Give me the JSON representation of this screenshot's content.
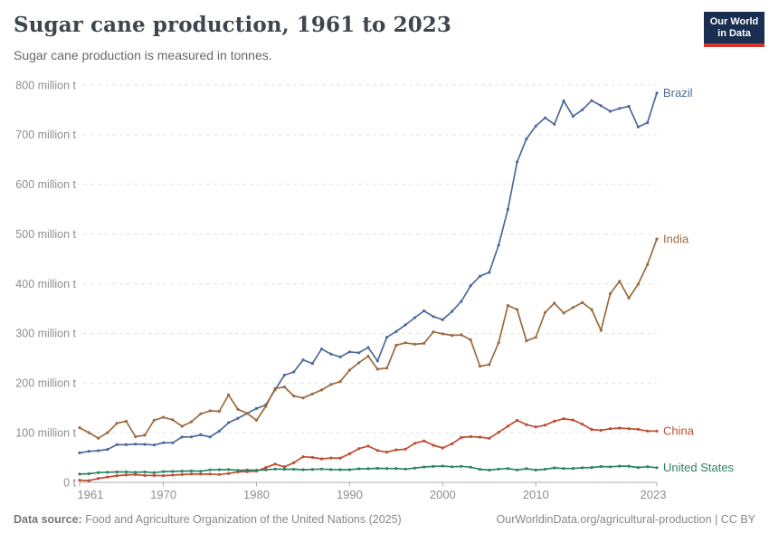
{
  "header": {
    "title": "Sugar cane production, 1961 to 2023",
    "subtitle": "Sugar cane production is measured in tonnes.",
    "logo": {
      "line1": "Our World",
      "line2": "in Data"
    }
  },
  "footer": {
    "source_label": "Data source:",
    "source_text": " Food and Agriculture Organization of the United Nations (2025)",
    "link_text": "OurWorldinData.org/agricultural-production",
    "license_suffix": " | CC BY"
  },
  "chart_data": {
    "type": "line",
    "title": "Sugar cane production, 1961 to 2023",
    "subtitle": "Sugar cane production is measured in tonnes.",
    "values_unit": "million tonnes",
    "x_label": "",
    "y_label": "",
    "x_start_year": 1961,
    "x_end_year": 2023,
    "x_ticks": [
      1961,
      1970,
      1980,
      1990,
      2000,
      2010,
      2023
    ],
    "y_axis": {
      "min": 0,
      "max": 800,
      "step": 100,
      "zero_label": "0 t",
      "unit_label": " million t"
    },
    "grid": "dashed-horizontal",
    "legend_position": "end-of-line-labels",
    "colors": {
      "grid": "#e3e3e3",
      "axis": "#adadad",
      "tick_text": "#8e8e8e"
    },
    "series": [
      {
        "name": "Brazil",
        "color": "#4C6A9C",
        "values": [
          59.4,
          62.5,
          63.7,
          66.4,
          75.9,
          75.8,
          77.1,
          76.6,
          75.2,
          79.8,
          79.6,
          91.3,
          91.5,
          95.6,
          91.5,
          103.2,
          120.1,
          129.1,
          138.9,
          148.7,
          155.9,
          186.6,
          216.0,
          222.3,
          246.5,
          239.2,
          268.7,
          258.4,
          252.6,
          262.7,
          260.9,
          271.5,
          244.5,
          292.1,
          303.7,
          317.1,
          331.6,
          345.3,
          333.8,
          327.7,
          344.3,
          364.4,
          396.0,
          415.2,
          422.9,
          477.4,
          549.7,
          645.3,
          691.6,
          717.5,
          734.0,
          721.1,
          768.1,
          737.2,
          750.3,
          768.7,
          758.5,
          747.1,
          752.9,
          757.1,
          715.7,
          724.4,
          784.0
        ]
      },
      {
        "name": "India",
        "color": "#9C6B3E",
        "values": [
          110,
          100,
          89,
          100,
          119,
          123,
          92,
          95,
          125,
          131,
          126,
          113,
          122,
          138,
          144,
          143,
          176,
          147,
          139,
          125,
          153,
          189,
          192,
          174,
          170,
          178,
          186,
          197,
          203,
          226,
          241,
          254,
          228,
          230,
          276,
          281,
          278,
          280,
          303,
          299,
          296,
          297,
          287,
          234,
          237,
          281,
          356,
          348,
          285,
          292,
          342,
          361,
          341,
          352,
          362,
          348,
          306,
          380,
          405,
          371,
          399,
          439,
          490
        ]
      },
      {
        "name": "China",
        "color": "#BF4C31",
        "values": [
          4.3,
          3.5,
          7.8,
          10.8,
          13.4,
          14.7,
          15.7,
          13.8,
          13.9,
          13.4,
          14.6,
          15.6,
          16.8,
          16.5,
          16.7,
          15.9,
          17.8,
          21.1,
          21.5,
          22.8,
          29.7,
          36.9,
          31.1,
          39.5,
          51.5,
          50.3,
          47.4,
          49.1,
          48.8,
          57.6,
          67.9,
          73.0,
          64.2,
          60.9,
          65.4,
          66.9,
          78.8,
          83.5,
          74.7,
          69.3,
          77.7,
          90.3,
          92.0,
          91.1,
          88.7,
          100.7,
          113.1,
          124.9,
          116.3,
          111.5,
          115.1,
          123.1,
          128.2,
          125.5,
          117.1,
          106.5,
          104.7,
          108.1,
          109.4,
          108.1,
          106.7,
          103.4,
          103.3
        ]
      },
      {
        "name": "United States",
        "color": "#2C8465",
        "values": [
          16.6,
          17.3,
          19.7,
          20.5,
          21.0,
          20.9,
          20.5,
          20.9,
          19.7,
          21.7,
          22.0,
          22.6,
          22.9,
          22.4,
          25.1,
          25.6,
          25.9,
          24.3,
          24.7,
          24.5,
          25.4,
          26.8,
          26.4,
          26.5,
          25.6,
          26.1,
          26.8,
          25.9,
          25.5,
          25.5,
          27.4,
          27.5,
          28.2,
          27.9,
          27.9,
          26.7,
          28.8,
          30.9,
          32.0,
          32.8,
          31.4,
          32.3,
          30.7,
          26.3,
          24.8,
          26.8,
          27.8,
          25.0,
          27.5,
          24.8,
          26.5,
          29.2,
          27.9,
          28.0,
          29.3,
          29.9,
          31.9,
          31.3,
          32.6,
          32.7,
          29.9,
          31.5,
          29.5
        ]
      }
    ]
  }
}
